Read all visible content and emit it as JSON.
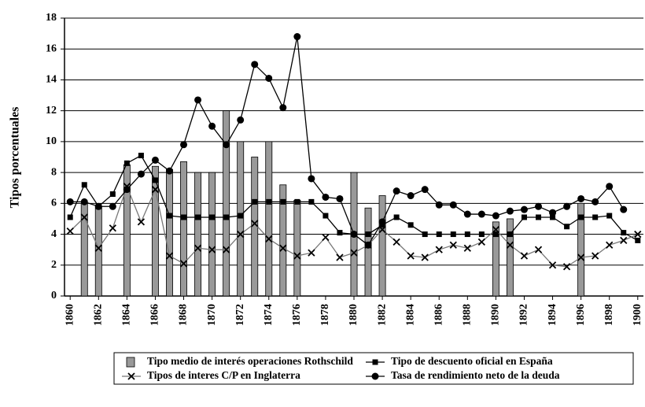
{
  "chart_data": {
    "type": "combo",
    "y_label": "Tipos porcentuales",
    "x": [
      1860,
      1861,
      1862,
      1863,
      1864,
      1865,
      1866,
      1867,
      1868,
      1869,
      1870,
      1871,
      1872,
      1873,
      1874,
      1875,
      1876,
      1877,
      1878,
      1879,
      1880,
      1881,
      1882,
      1883,
      1884,
      1885,
      1886,
      1887,
      1888,
      1889,
      1890,
      1891,
      1892,
      1893,
      1894,
      1895,
      1896,
      1897,
      1898,
      1899,
      1900
    ],
    "xlim": [
      1859.6,
      1900.4
    ],
    "xticks": [
      1860,
      1862,
      1864,
      1866,
      1868,
      1870,
      1872,
      1874,
      1876,
      1878,
      1880,
      1882,
      1884,
      1886,
      1888,
      1890,
      1892,
      1894,
      1896,
      1898,
      1900
    ],
    "ylim": [
      0,
      18
    ],
    "yticks": [
      0,
      2,
      4,
      6,
      8,
      10,
      12,
      14,
      16,
      18
    ],
    "grid": true,
    "legend": "bottom",
    "series": [
      {
        "name": "Tipo medio de interés operaciones Rothschild",
        "type": "bar",
        "color": "#999999",
        "values": [
          null,
          6.0,
          5.8,
          null,
          8.5,
          null,
          8.4,
          8.2,
          8.7,
          8.0,
          8.0,
          12.0,
          10.0,
          9.0,
          10.0,
          7.2,
          6.2,
          null,
          null,
          null,
          8.0,
          5.7,
          6.5,
          null,
          null,
          null,
          null,
          null,
          null,
          null,
          4.8,
          5.0,
          null,
          null,
          null,
          null,
          6.0,
          null,
          null,
          null,
          null
        ]
      },
      {
        "name": "Tipo de descuento oficial en España",
        "type": "line",
        "marker": "square",
        "color": "#000000",
        "values": [
          5.1,
          7.2,
          5.8,
          6.6,
          8.6,
          9.1,
          7.5,
          5.2,
          5.1,
          5.1,
          5.1,
          5.1,
          5.2,
          6.1,
          6.1,
          6.1,
          6.1,
          6.1,
          5.2,
          4.1,
          4.0,
          4.0,
          4.6,
          5.1,
          4.6,
          4.0,
          4.0,
          4.0,
          4.0,
          4.0,
          4.0,
          4.0,
          5.1,
          5.1,
          5.1,
          4.5,
          5.1,
          5.1,
          5.2,
          4.1,
          3.6
        ]
      },
      {
        "name": "Tipos de interes C/P en Inglaterra",
        "type": "line",
        "marker": "x",
        "color": "#777777",
        "values": [
          4.2,
          5.1,
          3.1,
          4.4,
          7.1,
          4.8,
          6.9,
          2.6,
          2.1,
          3.1,
          3.0,
          3.0,
          4.0,
          4.7,
          3.7,
          3.1,
          2.6,
          2.8,
          3.8,
          2.5,
          2.8,
          3.3,
          4.3,
          3.5,
          2.6,
          2.5,
          3.0,
          3.3,
          3.1,
          3.5,
          4.3,
          3.3,
          2.6,
          3.0,
          2.0,
          1.9,
          2.5,
          2.6,
          3.3,
          3.6,
          4.0
        ]
      },
      {
        "name": "Tasa de rendimiento neto de la deuda",
        "type": "line",
        "marker": "circle",
        "color": "#000000",
        "values": [
          6.1,
          6.1,
          5.8,
          5.8,
          6.9,
          7.9,
          8.8,
          8.1,
          9.8,
          12.7,
          11.0,
          9.8,
          11.4,
          15.0,
          14.1,
          12.2,
          16.8,
          7.6,
          6.4,
          6.3,
          4.0,
          3.3,
          4.8,
          6.8,
          6.5,
          6.9,
          5.9,
          5.9,
          5.3,
          5.3,
          5.2,
          5.5,
          5.6,
          5.8,
          5.4,
          5.8,
          6.3,
          6.1,
          7.1,
          5.6,
          null
        ]
      }
    ]
  }
}
